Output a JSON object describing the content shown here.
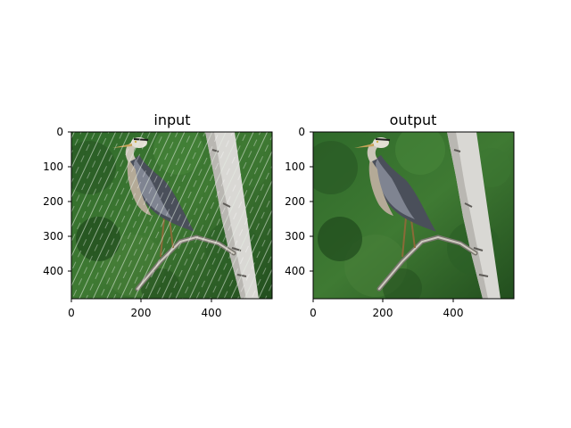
{
  "figure": {
    "panels": [
      {
        "title": "input",
        "x_ticks": [
          "0",
          "200",
          "400"
        ],
        "y_ticks": [
          "0",
          "100",
          "200",
          "300",
          "400"
        ],
        "image": {
          "subject": "great blue heron perched on a branch beside a birch trunk",
          "rain_streaks": true
        }
      },
      {
        "title": "output",
        "x_ticks": [
          "0",
          "200",
          "400"
        ],
        "y_ticks": [
          "0",
          "100",
          "200",
          "300",
          "400"
        ],
        "image": {
          "subject": "great blue heron perched on a branch beside a birch trunk",
          "rain_streaks": false
        }
      }
    ]
  },
  "colors": {
    "background": "#ffffff",
    "foliage_dark": "#1f4a1c",
    "foliage_light": "#4f8a3a",
    "trunk": "#d9d8d4",
    "heron_body": "#4a4f5a"
  }
}
